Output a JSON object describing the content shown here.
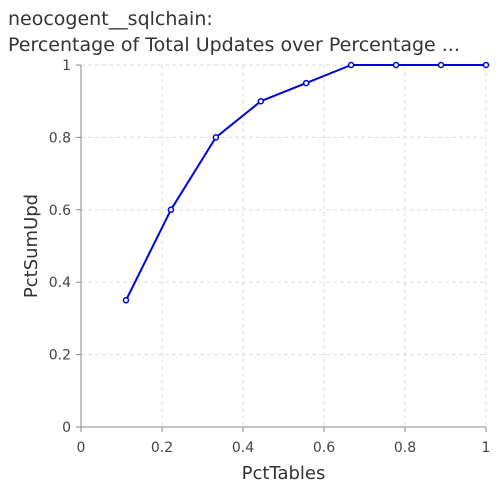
{
  "title_lines": [
    "neocogent__sqlchain:",
    "Percentage of Total Updates over Percentage ..."
  ],
  "chart_data": {
    "type": "line",
    "title": "neocogent__sqlchain: Percentage of Total Updates over Percentage ...",
    "xlabel": "PctTables",
    "ylabel": "PctSumUpd",
    "xlim": [
      0,
      1
    ],
    "ylim": [
      0,
      1
    ],
    "xticks": [
      "0",
      "0.2",
      "0.4",
      "0.6",
      "0.8",
      "1"
    ],
    "yticks": [
      "0",
      "0.2",
      "0.4",
      "0.6",
      "0.8",
      "1"
    ],
    "grid": true,
    "series": [
      {
        "x": [
          0.111,
          0.222,
          0.333,
          0.444,
          0.556,
          0.667,
          0.778,
          0.889,
          1.0
        ],
        "y": [
          0.35,
          0.6,
          0.8,
          0.9,
          0.95,
          1.0,
          1.0,
          1.0,
          1.0
        ],
        "color": "#0000dd"
      }
    ]
  }
}
